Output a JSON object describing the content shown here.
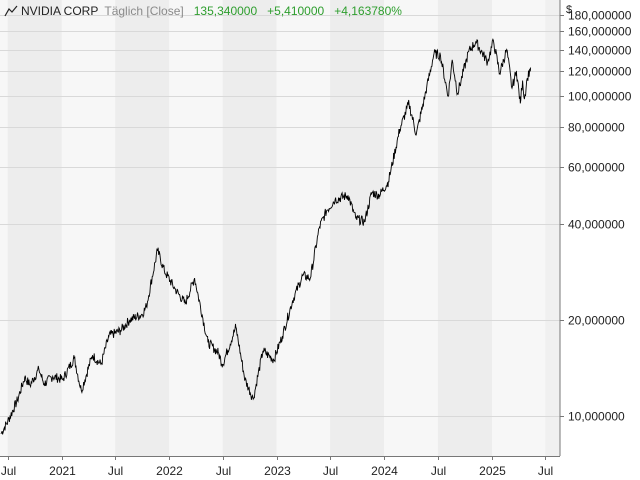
{
  "header": {
    "name": "NVIDIA CORP",
    "mode": "Täglich [Close]",
    "price": "135,340000",
    "change": "+5,410000",
    "change_pct": "+4,163780%",
    "icon": "line-chart-icon"
  },
  "currency": "$",
  "colors": {
    "band_light": "#f7f7f7",
    "band_dark": "#ededed",
    "future": "#f0f0f0",
    "grid": "#d9d9d9",
    "line": "#000000",
    "positive": "#2e9e2e"
  },
  "chart_data": {
    "type": "line",
    "scale": "log",
    "ylim": [
      7.5,
      200
    ],
    "xlim": [
      "2020-06-05",
      "2025-08-20"
    ],
    "y_ticks": [
      10,
      20,
      40,
      60,
      80,
      100,
      120,
      140,
      160,
      180
    ],
    "y_tick_labels": [
      "10,000000",
      "20,000000",
      "40,000000",
      "60,000000",
      "80,000000",
      "100,000000",
      "120,000000",
      "140,000000",
      "160,000000",
      "180,000000"
    ],
    "x_ticks": [
      {
        "date": "2020-07-01",
        "label": "Jul"
      },
      {
        "date": "2021-01-01",
        "label": "2021"
      },
      {
        "date": "2021-07-01",
        "label": "Jul"
      },
      {
        "date": "2022-01-01",
        "label": "2022"
      },
      {
        "date": "2022-07-01",
        "label": "Jul"
      },
      {
        "date": "2023-01-01",
        "label": "2023"
      },
      {
        "date": "2023-07-01",
        "label": "Jul"
      },
      {
        "date": "2024-01-01",
        "label": "2024"
      },
      {
        "date": "2024-07-01",
        "label": "Jul"
      },
      {
        "date": "2025-01-01",
        "label": "2025"
      },
      {
        "date": "2025-07-01",
        "label": "Jul"
      }
    ],
    "grid": true,
    "series": [
      {
        "points": [
          [
            "2020-06-08",
            8.8
          ],
          [
            "2020-07-01",
            9.6
          ],
          [
            "2020-08-03",
            11.2
          ],
          [
            "2020-08-28",
            13.2
          ],
          [
            "2020-09-15",
            12.5
          ],
          [
            "2020-10-15",
            14.0
          ],
          [
            "2020-11-02",
            12.6
          ],
          [
            "2020-12-01",
            13.3
          ],
          [
            "2021-01-04",
            13.0
          ],
          [
            "2021-02-12",
            15.2
          ],
          [
            "2021-03-08",
            12.0
          ],
          [
            "2021-04-15",
            15.5
          ],
          [
            "2021-05-14",
            14.5
          ],
          [
            "2021-06-10",
            17.8
          ],
          [
            "2021-07-19",
            18.5
          ],
          [
            "2021-08-20",
            20.0
          ],
          [
            "2021-09-30",
            20.8
          ],
          [
            "2021-10-15",
            22.0
          ],
          [
            "2021-11-22",
            33.0
          ],
          [
            "2021-12-15",
            28.5
          ],
          [
            "2022-01-20",
            25.0
          ],
          [
            "2022-02-24",
            22.5
          ],
          [
            "2022-03-28",
            27.0
          ],
          [
            "2022-05-12",
            17.0
          ],
          [
            "2022-06-16",
            15.8
          ],
          [
            "2022-07-01",
            14.5
          ],
          [
            "2022-08-15",
            19.0
          ],
          [
            "2022-09-15",
            13.0
          ],
          [
            "2022-10-13",
            11.3
          ],
          [
            "2022-11-15",
            16.0
          ],
          [
            "2022-12-22",
            15.0
          ],
          [
            "2023-01-20",
            17.8
          ],
          [
            "2023-02-24",
            23.0
          ],
          [
            "2023-03-30",
            27.5
          ],
          [
            "2023-04-25",
            27.0
          ],
          [
            "2023-05-26",
            39.0
          ],
          [
            "2023-06-20",
            44.0
          ],
          [
            "2023-07-18",
            47.5
          ],
          [
            "2023-08-31",
            49.0
          ],
          [
            "2023-09-26",
            41.5
          ],
          [
            "2023-10-26",
            40.5
          ],
          [
            "2023-11-20",
            50.0
          ],
          [
            "2023-12-15",
            49.0
          ],
          [
            "2024-01-15",
            54.0
          ],
          [
            "2024-02-23",
            79.0
          ],
          [
            "2024-03-25",
            95.0
          ],
          [
            "2024-04-19",
            76.0
          ],
          [
            "2024-05-24",
            106.0
          ],
          [
            "2024-06-18",
            136.0
          ],
          [
            "2024-07-10",
            134.0
          ],
          [
            "2024-08-05",
            100.0
          ],
          [
            "2024-08-19",
            130.0
          ],
          [
            "2024-09-06",
            102.0
          ],
          [
            "2024-10-14",
            138.0
          ],
          [
            "2024-11-07",
            148.0
          ],
          [
            "2024-12-17",
            128.0
          ],
          [
            "2025-01-06",
            149.0
          ],
          [
            "2025-01-27",
            118.0
          ],
          [
            "2025-02-20",
            140.0
          ],
          [
            "2025-03-10",
            106.0
          ],
          [
            "2025-03-25",
            120.0
          ],
          [
            "2025-04-07",
            95.0
          ],
          [
            "2025-04-15",
            112.0
          ],
          [
            "2025-04-21",
            98.0
          ],
          [
            "2025-05-01",
            114.0
          ],
          [
            "2025-05-12",
            123.0
          ]
        ]
      }
    ]
  }
}
